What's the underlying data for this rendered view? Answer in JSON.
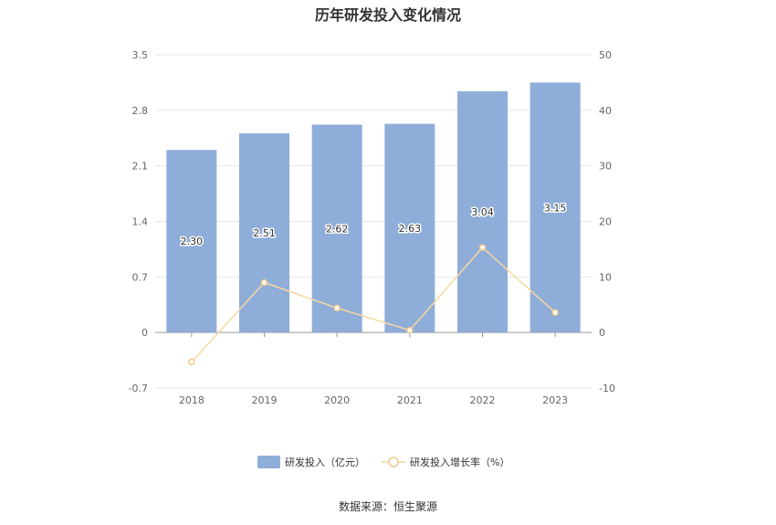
{
  "chart_data": {
    "type": "bar",
    "title": "历年研发投入变化情况",
    "categories": [
      "2018",
      "2019",
      "2020",
      "2021",
      "2022",
      "2023"
    ],
    "series": [
      {
        "name": "研发投入（亿元）",
        "type": "bar",
        "axis": "left",
        "color": "#8eadd9",
        "values": [
          2.3,
          2.51,
          2.62,
          2.63,
          3.04,
          3.15
        ]
      },
      {
        "name": "研发投入增长率（%）",
        "type": "line",
        "axis": "right",
        "color": "#fad7a0",
        "values": [
          -5.3,
          9.0,
          4.4,
          0.4,
          15.3,
          3.6
        ]
      }
    ],
    "y_left": {
      "min": -0.7,
      "max": 3.5,
      "ticks": [
        "3.5",
        "2.8",
        "2.1",
        "1.4",
        "0.7",
        "0",
        "-0.7"
      ]
    },
    "y_right": {
      "min": -10,
      "max": 50,
      "ticks": [
        "50",
        "40",
        "30",
        "20",
        "10",
        "0",
        "-10"
      ]
    },
    "grid": true,
    "legend_position": "bottom",
    "source": "数据来源：恒生聚源"
  }
}
